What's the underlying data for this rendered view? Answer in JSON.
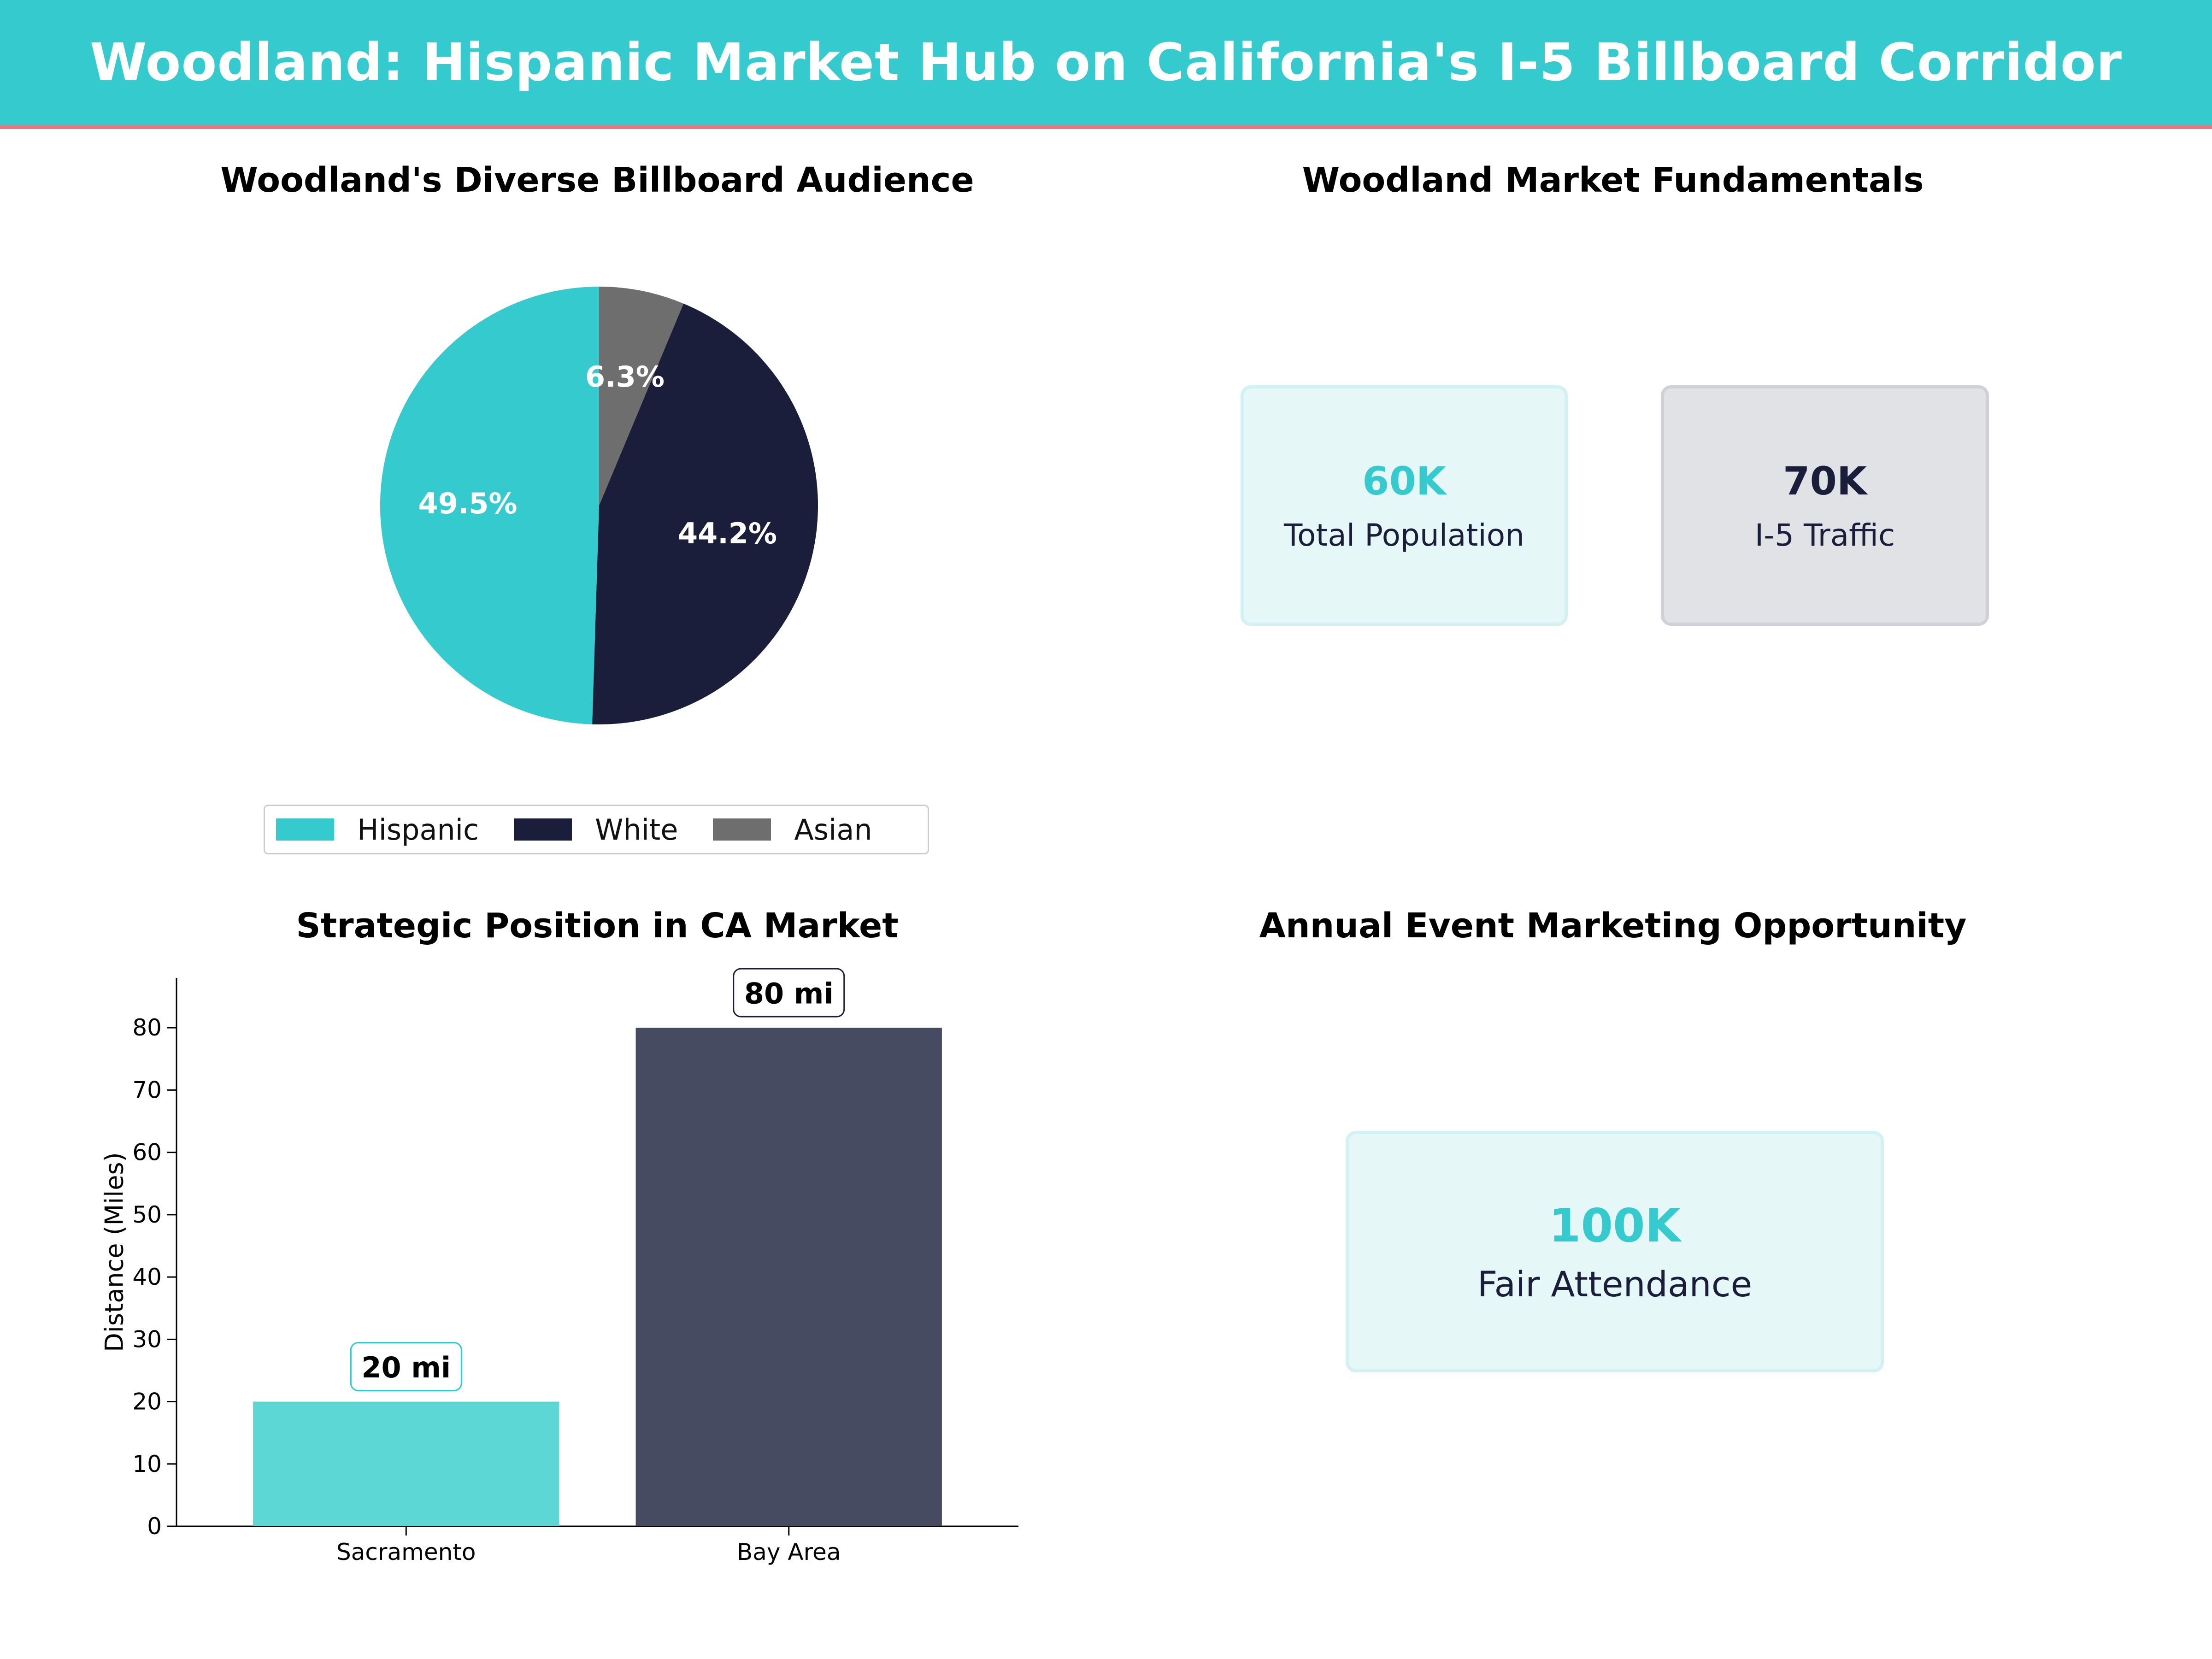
{
  "header": {
    "title": "Woodland: Hispanic Market Hub on California's I-5 Billboard Corridor",
    "background": "#35cbce",
    "accent_line": "#e8777e"
  },
  "audience": {
    "title": "Woodland's Diverse Billboard Audience"
  },
  "fundamentals": {
    "title": "Woodland Market Fundamentals",
    "cards": [
      {
        "value": "60K",
        "label": "Total Population",
        "value_color": "#35cbce"
      },
      {
        "value": "70K",
        "label": "I-5 Traffic",
        "value_color": "#1b1e3a"
      }
    ]
  },
  "position": {
    "title": "Strategic Position in CA Market"
  },
  "event": {
    "title": "Annual Event Marketing Opportunity",
    "value": "100K",
    "label": "Fair Attendance",
    "value_color": "#35cbce"
  },
  "chart_data": [
    {
      "type": "pie",
      "title": "Woodland's Diverse Billboard Audience",
      "labels": [
        "Hispanic",
        "White",
        "Asian"
      ],
      "values": [
        49.5,
        44.2,
        6.3
      ],
      "value_labels": [
        "49.5%",
        "44.2%",
        "6.3%"
      ],
      "colors": [
        "#35cbce",
        "#1b1e3a",
        "#6e6e6e"
      ],
      "start_angle_deg": 90,
      "direction": "counterclockwise",
      "legend_position": "bottom"
    },
    {
      "type": "bar",
      "title": "Strategic Position in CA Market",
      "categories": [
        "Sacramento",
        "Bay Area"
      ],
      "values": [
        20,
        80
      ],
      "value_labels": [
        "20 mi",
        "80 mi"
      ],
      "colors": [
        "#5dd6d6",
        "#464b62"
      ],
      "label_border_colors": [
        "#35cbce",
        "#1b1e3a"
      ],
      "xlabel": "",
      "ylabel": "Distance (Miles)",
      "ylim": [
        0,
        88
      ],
      "yticks": [
        0,
        10,
        20,
        30,
        40,
        50,
        60,
        70,
        80
      ]
    }
  ]
}
